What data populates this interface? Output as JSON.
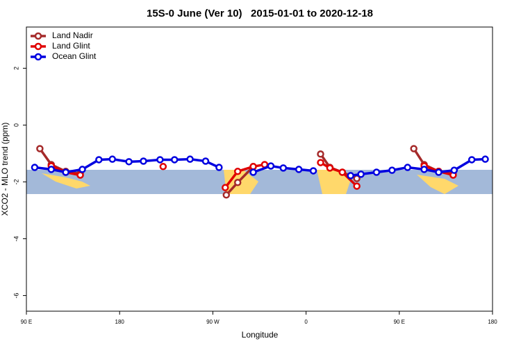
{
  "chart_data": {
    "type": "line",
    "title": "15S-0 June (Ver 10)   2015-01-01 to 2020-12-18",
    "xlabel": "Longitude",
    "ylabel": "XCO2 - MLO trend (ppm)",
    "xlim": [
      90,
      540
    ],
    "xticks": [
      {
        "value": 90,
        "label": "90 E"
      },
      {
        "value": 180,
        "label": "180"
      },
      {
        "value": 270,
        "label": "90 W"
      },
      {
        "value": 360,
        "label": "0"
      },
      {
        "value": 450,
        "label": "90 E"
      },
      {
        "value": 540,
        "label": "180"
      }
    ],
    "ylim": [
      -6.55,
      3.45
    ],
    "yticks": [
      2,
      0,
      -2,
      -4,
      -6
    ],
    "legend": "top-left",
    "series": [
      {
        "name": "Land Nadir",
        "color": "#a52a2a",
        "x": [
          103,
          114,
          128,
          142,
          null,
          283,
          294,
          309,
          null,
          374,
          383,
          395,
          409,
          null,
          464,
          474,
          488,
          502
        ],
        "values": [
          -0.83,
          -1.39,
          -1.63,
          -1.71,
          null,
          -2.46,
          -2.02,
          -1.46,
          null,
          -1.02,
          -1.49,
          -1.66,
          -1.88,
          null,
          -0.83,
          -1.39,
          -1.63,
          -1.71
        ]
      },
      {
        "name": "Land Glint",
        "color": "#e00000",
        "x": [
          114,
          128,
          142,
          null,
          222,
          null,
          282,
          294,
          309,
          320,
          null,
          374,
          383,
          395,
          409,
          null,
          474,
          488,
          502
        ],
        "values": [
          -1.44,
          -1.66,
          -1.76,
          null,
          -1.46,
          null,
          -2.2,
          -1.63,
          -1.46,
          -1.39,
          null,
          -1.32,
          -1.51,
          -1.66,
          -2.15,
          null,
          -1.44,
          -1.63,
          -1.76
        ]
      },
      {
        "name": "Ocean Glint",
        "color": "#0000e0",
        "x": [
          98,
          114,
          128,
          144,
          160,
          173,
          189,
          203,
          219,
          233,
          248,
          263,
          276,
          null,
          309,
          326,
          338,
          353,
          367,
          null,
          403,
          413,
          428,
          443,
          458,
          474,
          488,
          503,
          520,
          533
        ],
        "values": [
          -1.49,
          -1.56,
          -1.66,
          -1.56,
          -1.22,
          -1.2,
          -1.29,
          -1.27,
          -1.22,
          -1.22,
          -1.2,
          -1.27,
          -1.49,
          null,
          -1.66,
          -1.44,
          -1.51,
          -1.56,
          -1.61,
          null,
          -1.78,
          -1.73,
          -1.66,
          -1.59,
          -1.49,
          -1.56,
          -1.66,
          -1.59,
          -1.22,
          -1.2
        ]
      }
    ]
  }
}
